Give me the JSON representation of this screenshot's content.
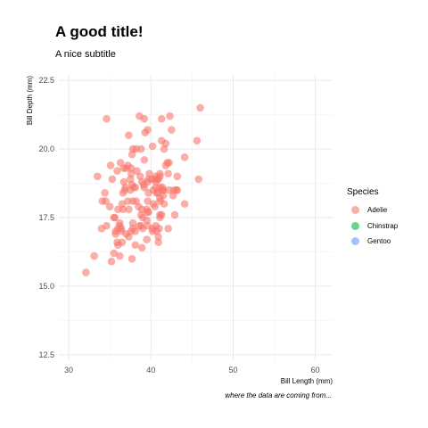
{
  "chart_data": {
    "type": "scatter",
    "title": "A good title!",
    "subtitle": "A nice subtitle",
    "caption": "where the data are coming from...",
    "xlabel": "Bill Length (mm)",
    "ylabel": "Bill Depth (mm)",
    "xlim": [
      28.8,
      62.1
    ],
    "ylim": [
      12.3,
      22.7
    ],
    "x_ticks": [
      30,
      40,
      50,
      60
    ],
    "y_ticks": [
      12.5,
      15.0,
      17.5,
      20.0,
      22.5
    ],
    "x_tick_labels": [
      "30",
      "40",
      "50",
      "60"
    ],
    "y_tick_labels": [
      "12.5",
      "15.0",
      "17.5",
      "20.0",
      "22.5"
    ],
    "grid": true,
    "legend": {
      "title": "Species",
      "position": "right",
      "entries": [
        {
          "label": "Adelie",
          "color": "#F8766D"
        },
        {
          "label": "Chinstrap",
          "color": "#00BA38"
        },
        {
          "label": "Gentoo",
          "color": "#619CFF"
        }
      ]
    },
    "series": [
      {
        "name": "Adelie",
        "color": "#F8766D",
        "points": [
          [
            32.1,
            15.5
          ],
          [
            33.1,
            16.1
          ],
          [
            33.5,
            19.0
          ],
          [
            34.0,
            17.1
          ],
          [
            34.1,
            18.1
          ],
          [
            34.4,
            18.4
          ],
          [
            34.5,
            18.1
          ],
          [
            34.6,
            17.2
          ],
          [
            34.6,
            21.1
          ],
          [
            35.0,
            17.9
          ],
          [
            35.1,
            19.4
          ],
          [
            35.2,
            15.9
          ],
          [
            35.3,
            18.9
          ],
          [
            35.5,
            16.2
          ],
          [
            35.5,
            17.5
          ],
          [
            35.6,
            17.5
          ],
          [
            35.7,
            16.9
          ],
          [
            35.7,
            17.0
          ],
          [
            35.9,
            16.6
          ],
          [
            35.9,
            19.2
          ],
          [
            36.0,
            16.5
          ],
          [
            36.0,
            17.8
          ],
          [
            36.0,
            17.1
          ],
          [
            36.2,
            16.1
          ],
          [
            36.2,
            17.2
          ],
          [
            36.2,
            17.3
          ],
          [
            36.3,
            19.5
          ],
          [
            36.4,
            17.0
          ],
          [
            36.4,
            17.1
          ],
          [
            36.5,
            16.6
          ],
          [
            36.5,
            18.0
          ],
          [
            36.6,
            17.8
          ],
          [
            36.6,
            18.4
          ],
          [
            36.7,
            18.8
          ],
          [
            36.7,
            19.3
          ],
          [
            36.8,
            18.5
          ],
          [
            36.9,
            18.6
          ],
          [
            37.0,
            16.9
          ],
          [
            37.0,
            19.3
          ],
          [
            37.2,
            18.1
          ],
          [
            37.2,
            19.4
          ],
          [
            37.3,
            16.8
          ],
          [
            37.3,
            17.8
          ],
          [
            37.3,
            20.5
          ],
          [
            37.5,
            18.5
          ],
          [
            37.5,
            18.9
          ],
          [
            37.6,
            17.0
          ],
          [
            37.6,
            19.1
          ],
          [
            37.6,
            19.3
          ],
          [
            37.7,
            16.0
          ],
          [
            37.7,
            18.7
          ],
          [
            37.7,
            19.8
          ],
          [
            37.8,
            17.1
          ],
          [
            37.8,
            17.3
          ],
          [
            37.8,
            18.1
          ],
          [
            37.8,
            20.0
          ],
          [
            37.9,
            18.6
          ],
          [
            38.1,
            16.5
          ],
          [
            38.1,
            17.0
          ],
          [
            38.1,
            18.6
          ],
          [
            38.2,
            18.1
          ],
          [
            38.2,
            20.0
          ],
          [
            38.3,
            19.2
          ],
          [
            38.5,
            17.9
          ],
          [
            38.6,
            17.2
          ],
          [
            38.6,
            21.2
          ],
          [
            38.7,
            19.0
          ],
          [
            38.8,
            17.2
          ],
          [
            38.8,
            17.6
          ],
          [
            38.8,
            20.0
          ],
          [
            38.9,
            16.4
          ],
          [
            38.9,
            17.8
          ],
          [
            38.9,
            18.8
          ],
          [
            39.0,
            17.1
          ],
          [
            39.0,
            17.5
          ],
          [
            39.1,
            18.7
          ],
          [
            39.2,
            18.6
          ],
          [
            39.2,
            19.6
          ],
          [
            39.2,
            21.1
          ],
          [
            39.3,
            20.6
          ],
          [
            39.5,
            16.7
          ],
          [
            39.5,
            17.4
          ],
          [
            39.5,
            17.8
          ],
          [
            39.6,
            17.2
          ],
          [
            39.6,
            17.7
          ],
          [
            39.6,
            18.1
          ],
          [
            39.6,
            18.8
          ],
          [
            39.6,
            20.7
          ],
          [
            39.7,
            17.7
          ],
          [
            39.7,
            18.4
          ],
          [
            39.7,
            18.9
          ],
          [
            39.8,
            19.1
          ],
          [
            40.1,
            18.9
          ],
          [
            40.2,
            17.0
          ],
          [
            40.2,
            17.1
          ],
          [
            40.2,
            20.1
          ],
          [
            40.3,
            18.0
          ],
          [
            40.3,
            18.5
          ],
          [
            40.5,
            17.9
          ],
          [
            40.5,
            18.9
          ],
          [
            40.6,
            17.2
          ],
          [
            40.6,
            18.6
          ],
          [
            40.6,
            18.8
          ],
          [
            40.6,
            19.0
          ],
          [
            40.7,
            17.0
          ],
          [
            40.7,
            18.4
          ],
          [
            40.8,
            18.4
          ],
          [
            40.8,
            18.9
          ],
          [
            40.9,
            16.6
          ],
          [
            40.9,
            16.8
          ],
          [
            40.9,
            18.9
          ],
          [
            41.0,
            17.1
          ],
          [
            41.1,
            17.5
          ],
          [
            41.1,
            17.6
          ],
          [
            41.1,
            18.1
          ],
          [
            41.1,
            18.2
          ],
          [
            41.1,
            18.6
          ],
          [
            41.1,
            19.0
          ],
          [
            41.1,
            19.1
          ],
          [
            41.3,
            17.6
          ],
          [
            41.3,
            20.3
          ],
          [
            41.3,
            21.1
          ],
          [
            41.4,
            18.5
          ],
          [
            41.4,
            18.6
          ],
          [
            41.5,
            18.3
          ],
          [
            41.5,
            18.5
          ],
          [
            41.6,
            18.0
          ],
          [
            41.6,
            20.0
          ],
          [
            41.8,
            19.4
          ],
          [
            41.8,
            20.2
          ],
          [
            42.0,
            19.5
          ],
          [
            42.1,
            17.1
          ],
          [
            42.1,
            19.1
          ],
          [
            42.2,
            18.5
          ],
          [
            42.2,
            19.5
          ],
          [
            42.3,
            21.2
          ],
          [
            42.5,
            20.7
          ],
          [
            42.7,
            18.3
          ],
          [
            42.8,
            18.5
          ],
          [
            42.9,
            17.6
          ],
          [
            43.1,
            18.5
          ],
          [
            43.2,
            18.5
          ],
          [
            43.2,
            19.0
          ],
          [
            44.1,
            18.0
          ],
          [
            44.1,
            19.7
          ],
          [
            45.6,
            20.3
          ],
          [
            45.8,
            18.9
          ],
          [
            46.0,
            21.5
          ]
        ]
      }
    ]
  }
}
